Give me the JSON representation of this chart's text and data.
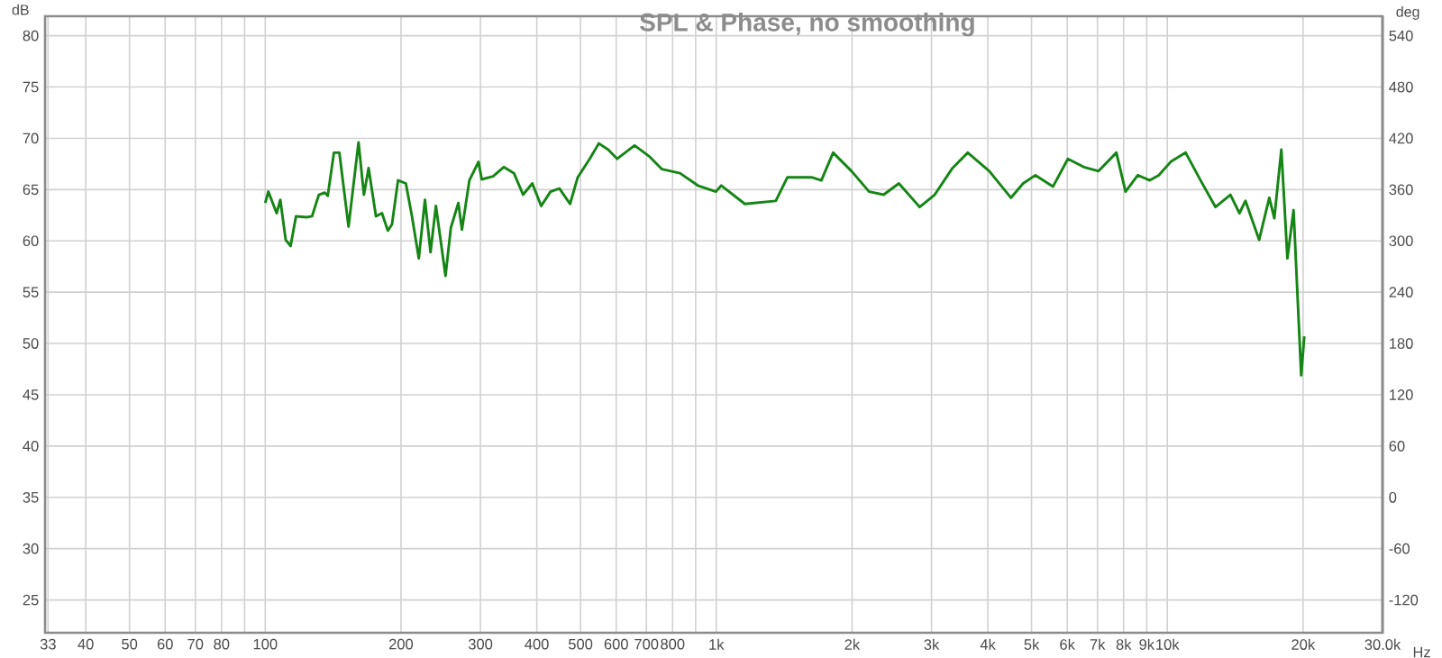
{
  "chart_data": {
    "type": "line",
    "title": "SPL & Phase, no smoothing",
    "xlabel": "Hz",
    "ylabel": "dB",
    "y2label": "deg",
    "log": "x",
    "grid": true,
    "line_style": "solid",
    "xlim": [
      32.5,
      30000
    ],
    "ylim": [
      21.8,
      81.9
    ],
    "y2lim": [
      -158.4,
      562.8
    ],
    "xticks": [
      33,
      40,
      50,
      60,
      70,
      80,
      {
        "value": 90,
        "label": null
      },
      100,
      200,
      300,
      400,
      500,
      600,
      700,
      800,
      {
        "value": 900,
        "label": null
      },
      {
        "value": 1000,
        "label": "1k"
      },
      {
        "value": 2000,
        "label": "2k"
      },
      {
        "value": 3000,
        "label": "3k"
      },
      {
        "value": 4000,
        "label": "4k"
      },
      {
        "value": 5000,
        "label": "5k"
      },
      {
        "value": 6000,
        "label": "6k"
      },
      {
        "value": 7000,
        "label": "7k"
      },
      {
        "value": 8000,
        "label": "8k"
      },
      {
        "value": 9000,
        "label": "9k"
      },
      {
        "value": 10000,
        "label": "10k"
      },
      {
        "value": 20000,
        "label": "20k"
      },
      {
        "value": 30000,
        "label": "30.0k"
      }
    ],
    "yticks": [
      25,
      30,
      35,
      40,
      45,
      50,
      55,
      60,
      65,
      70,
      75,
      80
    ],
    "y2ticks": [
      -120,
      -60,
      0,
      60,
      120,
      180,
      240,
      300,
      360,
      420,
      480,
      540
    ],
    "series": [
      {
        "color": "#158515",
        "x": [
          100,
          101.6,
          106,
          108,
          111,
          113.8,
          117,
          123.6,
          127,
          131.5,
          135.5,
          137.6,
          142,
          146,
          153,
          161,
          165.5,
          169.5,
          176,
          181.5,
          187,
          191,
          197,
          205,
          211.5,
          219,
          226,
          232.5,
          239,
          251,
          258,
          268,
          273,
          283.5,
          297,
          302,
          320,
          338,
          356,
          373,
          391,
          409,
          429,
          449,
          474,
          493,
          524,
          549,
          576,
          603,
          659,
          712,
          757,
          831,
          910,
          998,
          1026,
          1157,
          1355,
          1438,
          1625,
          1710,
          1816,
          1903,
          1995,
          2182,
          2350,
          2540,
          2825,
          3050,
          3340,
          3610,
          4030,
          4500,
          4790,
          5100,
          5580,
          6020,
          6530,
          7040,
          7710,
          8080,
          8600,
          9140,
          9570,
          10170,
          10980,
          11850,
          12790,
          13800,
          14450,
          14900,
          15980,
          16830,
          17270,
          17900,
          18460,
          19050,
          19810,
          20120
        ],
        "values": [
          63.7,
          64.8,
          62.7,
          64.0,
          60.1,
          59.5,
          62.4,
          62.3,
          62.4,
          64.5,
          64.7,
          64.4,
          68.6,
          68.6,
          61.4,
          69.6,
          64.5,
          67.1,
          62.4,
          62.7,
          61.0,
          61.6,
          65.9,
          65.6,
          62.4,
          58.3,
          64.0,
          58.9,
          63.4,
          56.6,
          61.3,
          63.7,
          61.1,
          65.9,
          67.7,
          66.0,
          66.3,
          67.2,
          66.6,
          64.5,
          65.6,
          63.4,
          64.8,
          65.1,
          63.6,
          66.2,
          68.0,
          69.5,
          68.9,
          68.0,
          69.3,
          68.2,
          67.0,
          66.6,
          65.4,
          64.8,
          65.4,
          63.6,
          63.9,
          66.2,
          66.2,
          65.9,
          68.6,
          67.7,
          66.8,
          64.8,
          64.5,
          65.6,
          63.3,
          64.5,
          67.1,
          68.6,
          66.8,
          64.2,
          65.6,
          66.4,
          65.3,
          68.0,
          67.2,
          66.8,
          68.6,
          64.8,
          66.4,
          65.9,
          66.4,
          67.7,
          68.6,
          65.9,
          63.3,
          64.5,
          62.7,
          63.9,
          60.1,
          64.2,
          62.2,
          68.9,
          58.3,
          63.0,
          46.9,
          50.7
        ]
      }
    ]
  }
}
